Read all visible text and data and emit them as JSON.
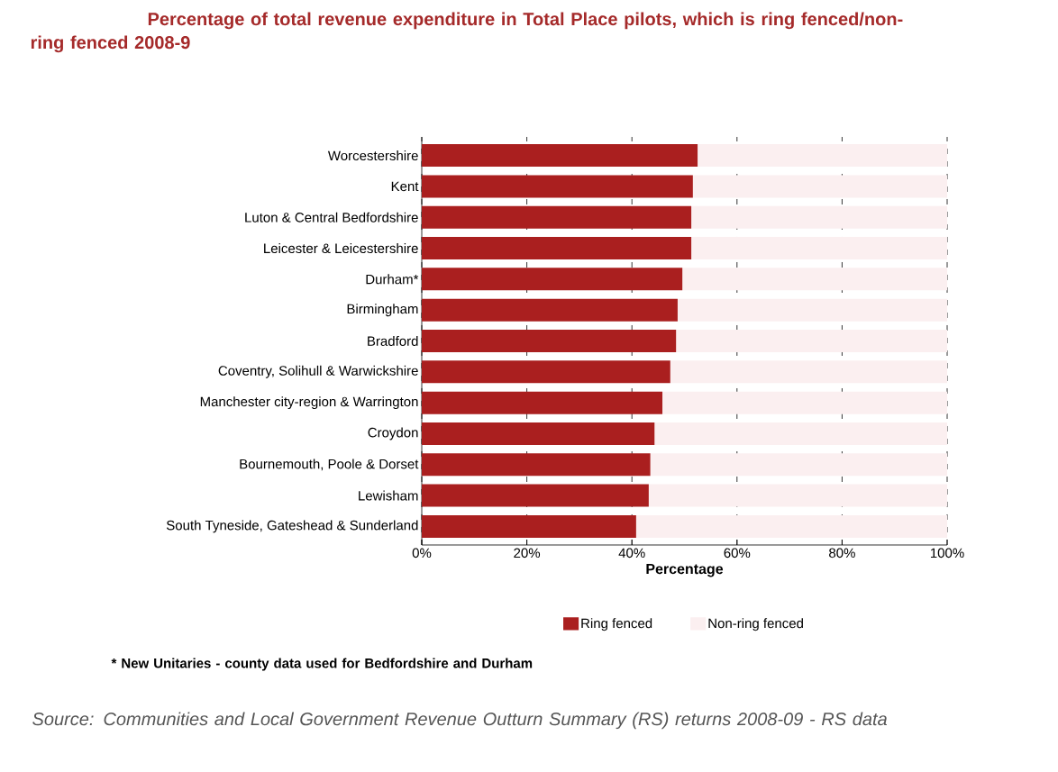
{
  "chart_data": {
    "type": "bar",
    "orientation": "horizontal",
    "stacked": true,
    "title": "Percentage of total revenue expenditure in Total Place pilots, which is ring fenced/non-ring fenced 2008-9",
    "xlabel": "Percentage",
    "categories": [
      "Worcestershire",
      "Kent",
      "Luton & Central Bedfordshire",
      "Leicester & Leicestershire",
      "Durham*",
      "Birmingham",
      "Bradford",
      "Coventry, Solihull & Warwickshire",
      "Manchester city-region & Warrington",
      "Croydon",
      "Bournemouth, Poole & Dorset",
      "Lewisham",
      "South Tyneside, Gateshead & Sunderland"
    ],
    "series": [
      {
        "name": "Ring fenced",
        "color": "#aa1f1f",
        "values": [
          52.5,
          51.6,
          51.3,
          51.3,
          49.6,
          48.7,
          48.4,
          47.3,
          45.8,
          44.3,
          43.5,
          43.2,
          40.8
        ]
      },
      {
        "name": "Non-ring fenced",
        "color": "#fbeff0",
        "values": [
          47.5,
          48.4,
          48.7,
          48.7,
          50.4,
          51.3,
          51.6,
          52.7,
          54.2,
          55.7,
          56.5,
          56.8,
          59.2
        ]
      }
    ],
    "xlim": [
      0,
      100
    ],
    "xticks": [
      {
        "value": 0,
        "label": "0%"
      },
      {
        "value": 20,
        "label": "20%"
      },
      {
        "value": 40,
        "label": "40%"
      },
      {
        "value": 60,
        "label": "60%"
      },
      {
        "value": 80,
        "label": "80%"
      },
      {
        "value": 100,
        "label": "100%"
      }
    ],
    "grid": "x",
    "legend": "bottom",
    "annotations": [
      "* New Unitaries - county data used for Bedfordshire and Durham",
      "Source: Communities and Local Government Revenue Outturn Summary (RS) returns 2008-09 - RS data"
    ]
  }
}
